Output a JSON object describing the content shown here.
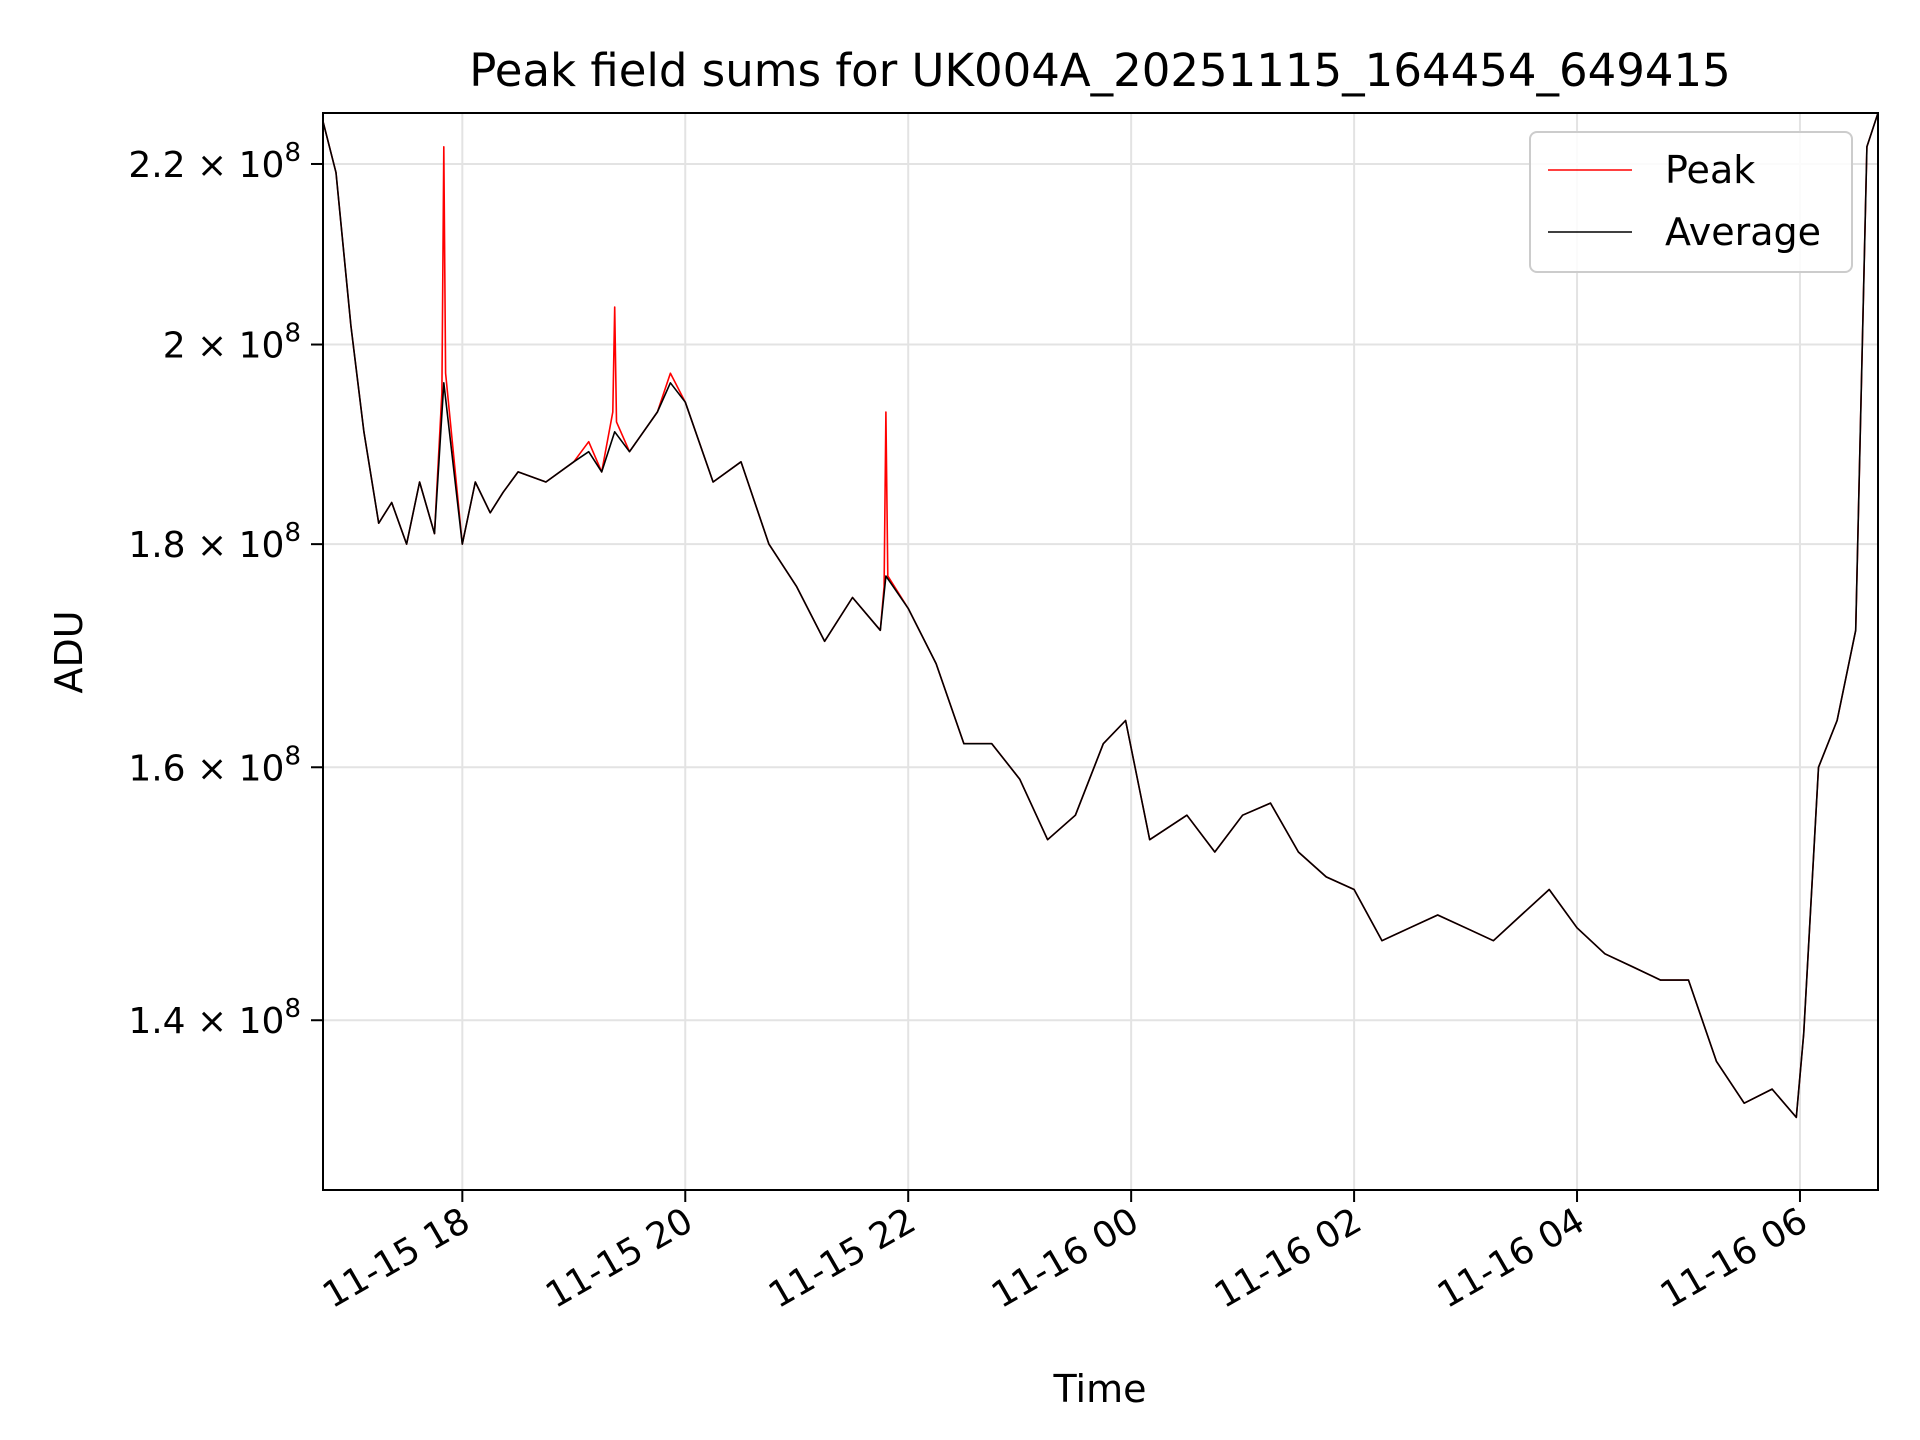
{
  "chart_data": {
    "type": "line",
    "title": "Peak field sums for UK004A_20251115_164454_649415",
    "xlabel": "Time",
    "ylabel": "ADU",
    "y_scale": "log",
    "ylim": [
      128000000,
      226000000
    ],
    "xlim": [
      "2025-11-15 16:45",
      "2025-11-16 06:42"
    ],
    "grid": true,
    "legend_position": "top-right",
    "x_ticks": [
      {
        "label": "11-15 18",
        "value": "2025-11-15 18:00"
      },
      {
        "label": "11-15 20",
        "value": "2025-11-15 20:00"
      },
      {
        "label": "11-15 22",
        "value": "2025-11-15 22:00"
      },
      {
        "label": "11-16 00",
        "value": "2025-11-16 00:00"
      },
      {
        "label": "11-16 02",
        "value": "2025-11-16 02:00"
      },
      {
        "label": "11-16 04",
        "value": "2025-11-16 04:00"
      },
      {
        "label": "11-16 06",
        "value": "2025-11-16 06:00"
      }
    ],
    "y_ticks": [
      {
        "mantissa": "1.4",
        "exponent": "8",
        "value": 140000000
      },
      {
        "mantissa": "1.6",
        "exponent": "8",
        "value": 160000000
      },
      {
        "mantissa": "1.8",
        "exponent": "8",
        "value": 180000000
      },
      {
        "mantissa": "2",
        "exponent": "8",
        "value": 200000000
      },
      {
        "mantissa": "2.2",
        "exponent": "8",
        "value": 220000000
      }
    ],
    "series": [
      {
        "name": "Peak",
        "color": "#ff0000",
        "x": [
          "2025-11-15 16:45",
          "2025-11-15 16:52",
          "2025-11-15 17:00",
          "2025-11-15 17:07",
          "2025-11-15 17:15",
          "2025-11-15 17:22",
          "2025-11-15 17:30",
          "2025-11-15 17:37",
          "2025-11-15 17:45",
          "2025-11-15 17:49",
          "2025-11-15 17:50",
          "2025-11-15 17:51",
          "2025-11-15 18:00",
          "2025-11-15 18:07",
          "2025-11-15 18:15",
          "2025-11-15 18:22",
          "2025-11-15 18:30",
          "2025-11-15 18:45",
          "2025-11-15 19:00",
          "2025-11-15 19:08",
          "2025-11-15 19:15",
          "2025-11-15 19:21",
          "2025-11-15 19:22",
          "2025-11-15 19:23",
          "2025-11-15 19:30",
          "2025-11-15 19:45",
          "2025-11-15 19:52",
          "2025-11-15 20:00",
          "2025-11-15 20:15",
          "2025-11-15 20:30",
          "2025-11-15 20:45",
          "2025-11-15 21:00",
          "2025-11-15 21:15",
          "2025-11-15 21:30",
          "2025-11-15 21:45",
          "2025-11-15 21:47",
          "2025-11-15 21:48",
          "2025-11-15 21:49",
          "2025-11-15 22:00",
          "2025-11-15 22:15",
          "2025-11-15 22:30",
          "2025-11-15 22:45",
          "2025-11-15 23:00",
          "2025-11-15 23:15",
          "2025-11-15 23:30",
          "2025-11-15 23:45",
          "2025-11-15 23:57",
          "2025-11-16 00:10",
          "2025-11-16 00:30",
          "2025-11-16 00:45",
          "2025-11-16 01:00",
          "2025-11-16 01:15",
          "2025-11-16 01:30",
          "2025-11-16 01:45",
          "2025-11-16 02:00",
          "2025-11-16 02:15",
          "2025-11-16 02:30",
          "2025-11-16 02:45",
          "2025-11-16 03:00",
          "2025-11-16 03:15",
          "2025-11-16 03:30",
          "2025-11-16 03:45",
          "2025-11-16 04:00",
          "2025-11-16 04:15",
          "2025-11-16 04:30",
          "2025-11-16 04:45",
          "2025-11-16 05:00",
          "2025-11-16 05:15",
          "2025-11-16 05:30",
          "2025-11-16 05:45",
          "2025-11-16 05:58",
          "2025-11-16 06:02",
          "2025-11-16 06:10",
          "2025-11-16 06:20",
          "2025-11-16 06:30",
          "2025-11-16 06:36",
          "2025-11-16 06:42"
        ],
        "values": [
          225000000,
          219000000,
          202000000,
          191000000,
          182000000,
          184000000,
          180000000,
          186000000,
          181000000,
          195000000,
          222000000,
          197000000,
          180000000,
          186000000,
          183000000,
          185000000,
          187000000,
          186000000,
          188000000,
          190000000,
          187000000,
          193000000,
          204000000,
          192000000,
          189000000,
          193000000,
          197000000,
          194000000,
          186000000,
          188000000,
          180000000,
          176000000,
          171000000,
          175000000,
          172000000,
          176000000,
          193000000,
          177000000,
          174000000,
          169000000,
          162000000,
          162000000,
          159000000,
          154000000,
          156000000,
          162000000,
          164000000,
          154000000,
          156000000,
          153000000,
          156000000,
          157000000,
          153000000,
          151000000,
          150000000,
          146000000,
          147000000,
          148000000,
          147000000,
          146000000,
          148000000,
          150000000,
          147000000,
          145000000,
          144000000,
          143000000,
          143000000,
          137000000,
          134000000,
          135000000,
          133000000,
          139000000,
          160000000,
          164000000,
          172000000,
          222000000,
          226000000
        ]
      },
      {
        "name": "Average",
        "color": "#000000",
        "x": [
          "2025-11-15 16:45",
          "2025-11-15 16:52",
          "2025-11-15 17:00",
          "2025-11-15 17:07",
          "2025-11-15 17:15",
          "2025-11-15 17:22",
          "2025-11-15 17:30",
          "2025-11-15 17:37",
          "2025-11-15 17:45",
          "2025-11-15 17:50",
          "2025-11-15 18:00",
          "2025-11-15 18:07",
          "2025-11-15 18:15",
          "2025-11-15 18:22",
          "2025-11-15 18:30",
          "2025-11-15 18:45",
          "2025-11-15 19:00",
          "2025-11-15 19:08",
          "2025-11-15 19:15",
          "2025-11-15 19:22",
          "2025-11-15 19:30",
          "2025-11-15 19:45",
          "2025-11-15 19:52",
          "2025-11-15 20:00",
          "2025-11-15 20:15",
          "2025-11-15 20:30",
          "2025-11-15 20:45",
          "2025-11-15 21:00",
          "2025-11-15 21:15",
          "2025-11-15 21:30",
          "2025-11-15 21:45",
          "2025-11-15 21:48",
          "2025-11-15 22:00",
          "2025-11-15 22:15",
          "2025-11-15 22:30",
          "2025-11-15 22:45",
          "2025-11-15 23:00",
          "2025-11-15 23:15",
          "2025-11-15 23:30",
          "2025-11-15 23:45",
          "2025-11-15 23:57",
          "2025-11-16 00:10",
          "2025-11-16 00:30",
          "2025-11-16 00:45",
          "2025-11-16 01:00",
          "2025-11-16 01:15",
          "2025-11-16 01:30",
          "2025-11-16 01:45",
          "2025-11-16 02:00",
          "2025-11-16 02:15",
          "2025-11-16 02:30",
          "2025-11-16 02:45",
          "2025-11-16 03:00",
          "2025-11-16 03:15",
          "2025-11-16 03:30",
          "2025-11-16 03:45",
          "2025-11-16 04:00",
          "2025-11-16 04:15",
          "2025-11-16 04:30",
          "2025-11-16 04:45",
          "2025-11-16 05:00",
          "2025-11-16 05:15",
          "2025-11-16 05:30",
          "2025-11-16 05:45",
          "2025-11-16 05:58",
          "2025-11-16 06:02",
          "2025-11-16 06:10",
          "2025-11-16 06:20",
          "2025-11-16 06:30",
          "2025-11-16 06:36",
          "2025-11-16 06:42"
        ],
        "values": [
          225000000,
          219000000,
          202000000,
          191000000,
          182000000,
          184000000,
          180000000,
          186000000,
          181000000,
          196000000,
          180000000,
          186000000,
          183000000,
          185000000,
          187000000,
          186000000,
          188000000,
          189000000,
          187000000,
          191000000,
          189000000,
          193000000,
          196000000,
          194000000,
          186000000,
          188000000,
          180000000,
          176000000,
          171000000,
          175000000,
          172000000,
          177000000,
          174000000,
          169000000,
          162000000,
          162000000,
          159000000,
          154000000,
          156000000,
          162000000,
          164000000,
          154000000,
          156000000,
          153000000,
          156000000,
          157000000,
          153000000,
          151000000,
          150000000,
          146000000,
          147000000,
          148000000,
          147000000,
          146000000,
          148000000,
          150000000,
          147000000,
          145000000,
          144000000,
          143000000,
          143000000,
          137000000,
          134000000,
          135000000,
          133000000,
          139000000,
          160000000,
          164000000,
          172000000,
          222000000,
          226000000
        ]
      }
    ]
  }
}
